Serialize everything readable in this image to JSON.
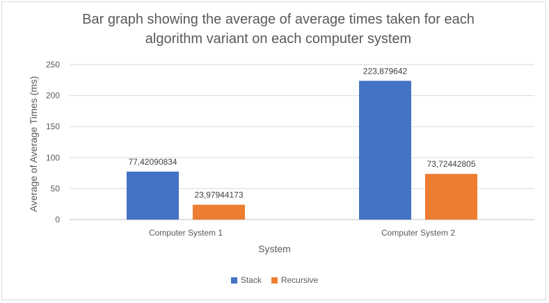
{
  "chart_data": {
    "type": "bar",
    "title": "Bar graph showing the average of average times taken for each algorithm variant on each computer system",
    "xlabel": "System",
    "ylabel": "Average of Average Times (ms)",
    "categories": [
      "Computer System 1",
      "Computer System 2"
    ],
    "series": [
      {
        "name": "Stack",
        "color": "#4472c4",
        "values": [
          77.42090834,
          223.879642
        ],
        "labels": [
          "77,42090834",
          "223,879642"
        ]
      },
      {
        "name": "Recursive",
        "color": "#ed7d31",
        "values": [
          23.97944173,
          73.72442805
        ],
        "labels": [
          "23,97944173",
          "73,72442805"
        ]
      }
    ],
    "ylim": [
      0,
      250
    ],
    "yticks": [
      0,
      50,
      100,
      150,
      200,
      250
    ],
    "grid": true,
    "legend_position": "bottom"
  }
}
